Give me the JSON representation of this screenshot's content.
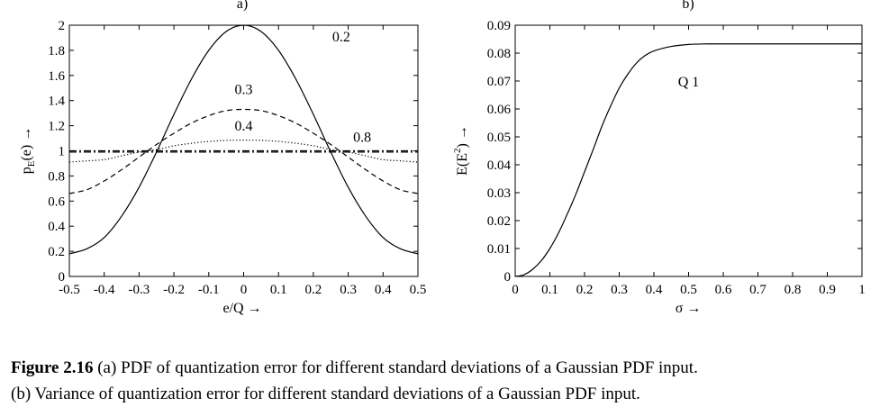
{
  "chart_data": [
    {
      "type": "line",
      "panel_label": "a)",
      "xlabel": "e/Q →",
      "ylabel_main": "p",
      "ylabel_sub": "E",
      "ylabel_rest": "(e) →",
      "xlim": [
        -0.5,
        0.5
      ],
      "ylim": [
        0,
        2
      ],
      "xticks": [
        "-0.5",
        "-0.4",
        "-0.3",
        "-0.2",
        "-0.1",
        "0",
        "0.1",
        "0.2",
        "0.3",
        "0.4",
        "0.5"
      ],
      "yticks": [
        "0",
        "0.2",
        "0.4",
        "0.6",
        "0.8",
        "1",
        "1.2",
        "1.4",
        "1.6",
        "1.8",
        "2"
      ],
      "grid": false,
      "series": [
        {
          "name": "0.2",
          "style": "solid",
          "x": [
            -0.5,
            -0.45,
            -0.4,
            -0.35,
            -0.3,
            -0.25,
            -0.2,
            -0.15,
            -0.1,
            -0.05,
            0,
            0.05,
            0.1,
            0.15,
            0.2,
            0.25,
            0.3,
            0.35,
            0.4,
            0.45,
            0.5
          ],
          "y": [
            0.18,
            0.22,
            0.31,
            0.48,
            0.71,
            0.99,
            1.29,
            1.57,
            1.8,
            1.95,
            2.0,
            1.95,
            1.8,
            1.57,
            1.29,
            0.99,
            0.71,
            0.48,
            0.31,
            0.22,
            0.18
          ]
        },
        {
          "name": "0.3",
          "style": "dashed",
          "x": [
            -0.5,
            -0.45,
            -0.4,
            -0.35,
            -0.3,
            -0.25,
            -0.2,
            -0.15,
            -0.1,
            -0.05,
            0,
            0.05,
            0.1,
            0.15,
            0.2,
            0.25,
            0.3,
            0.35,
            0.4,
            0.45,
            0.5
          ],
          "y": [
            0.66,
            0.69,
            0.76,
            0.85,
            0.95,
            1.05,
            1.14,
            1.22,
            1.28,
            1.32,
            1.33,
            1.32,
            1.28,
            1.22,
            1.14,
            1.05,
            0.95,
            0.85,
            0.76,
            0.69,
            0.66
          ]
        },
        {
          "name": "0.4",
          "style": "dotted",
          "x": [
            -0.5,
            -0.45,
            -0.4,
            -0.35,
            -0.3,
            -0.25,
            -0.2,
            -0.15,
            -0.1,
            -0.05,
            0,
            0.05,
            0.1,
            0.15,
            0.2,
            0.25,
            0.3,
            0.35,
            0.4,
            0.45,
            0.5
          ],
          "y": [
            0.91,
            0.92,
            0.93,
            0.96,
            0.99,
            1.01,
            1.04,
            1.06,
            1.075,
            1.083,
            1.085,
            1.083,
            1.075,
            1.06,
            1.04,
            1.01,
            0.99,
            0.96,
            0.93,
            0.92,
            0.91
          ]
        },
        {
          "name": "0.8",
          "style": "dashdot",
          "x": [
            -0.5,
            0.5
          ],
          "y": [
            1.0,
            1.0
          ]
        },
        {
          "name": "",
          "style": "dashdot",
          "x": [
            -0.5,
            0.5
          ],
          "y": [
            0.99,
            0.99
          ]
        }
      ],
      "labels": [
        {
          "text": "0.2",
          "x": 0.28,
          "y": 1.87
        },
        {
          "text": "0.3",
          "x": 0.0,
          "y": 1.45
        },
        {
          "text": "0.4",
          "x": 0.0,
          "y": 1.16
        },
        {
          "text": "0.8",
          "x": 0.34,
          "y": 1.07
        }
      ]
    },
    {
      "type": "line",
      "panel_label": "b)",
      "xlabel": "σ →",
      "ylabel_main": "E(E",
      "ylabel_sup": "2",
      "ylabel_rest": ") →",
      "xlim": [
        0,
        1
      ],
      "ylim": [
        0,
        0.09
      ],
      "xticks": [
        "0",
        "0.1",
        "0.2",
        "0.3",
        "0.4",
        "0.5",
        "0.6",
        "0.7",
        "0.8",
        "0.9",
        "1"
      ],
      "yticks": [
        "0",
        "0.01",
        "0.02",
        "0.03",
        "0.04",
        "0.05",
        "0.06",
        "0.07",
        "0.08",
        "0.09"
      ],
      "grid": false,
      "series": [
        {
          "name": "",
          "style": "solid",
          "x": [
            0,
            0.025,
            0.05,
            0.075,
            0.1,
            0.125,
            0.15,
            0.175,
            0.2,
            0.225,
            0.25,
            0.275,
            0.3,
            0.325,
            0.35,
            0.375,
            0.4,
            0.45,
            0.5,
            0.55,
            0.6,
            0.7,
            0.8,
            0.9,
            1.0
          ],
          "y": [
            0,
            0.0006,
            0.0025,
            0.0056,
            0.01,
            0.0156,
            0.0223,
            0.0295,
            0.0375,
            0.0455,
            0.0538,
            0.061,
            0.0675,
            0.0725,
            0.0765,
            0.0792,
            0.0808,
            0.0824,
            0.0831,
            0.0833,
            0.0833,
            0.0833,
            0.0833,
            0.0833,
            0.0833
          ]
        }
      ],
      "labels": [
        {
          "text": "Q 1",
          "x": 0.5,
          "y": 0.068
        }
      ]
    }
  ],
  "caption": {
    "a_label": "Figure 2.16",
    "a_text": " (a) PDF of quantization error for different standard deviations of a Gaussian PDF input.",
    "b_text": "(b) Variance of quantization error for different standard deviations of a Gaussian PDF input."
  }
}
